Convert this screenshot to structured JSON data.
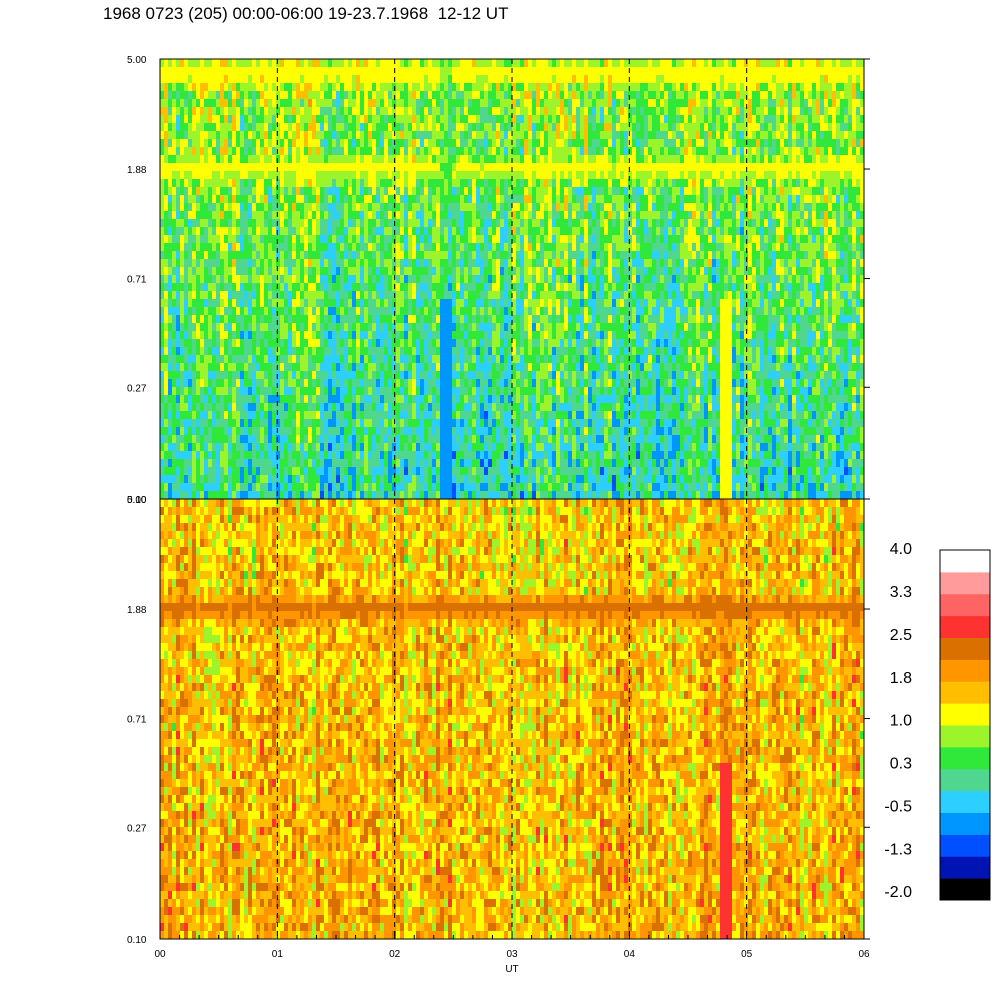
{
  "title": "1968 0723 (205) 00:00-06:00 19-23.7.1968  12-12 UT",
  "chart_data": {
    "type": "heatmap",
    "panels": [
      {
        "name": "",
        "y_scale": "log",
        "y_ticks": [
          "5.00",
          "1.88",
          "0.71",
          "0.27",
          "0.10"
        ],
        "y_tick_values": [
          5.0,
          1.88,
          0.71,
          0.27,
          0.1
        ],
        "base_level": 0.4,
        "band_levels": [
          {
            "y": 4.4,
            "level": 1.3
          },
          {
            "y": 1.88,
            "level": 1.15
          }
        ],
        "features": [
          {
            "x_hours": 4.82,
            "level": 1.3,
            "label": ""
          },
          {
            "x_hours": 2.45,
            "level": -0.6,
            "label": ""
          }
        ]
      },
      {
        "name": "",
        "y_scale": "log",
        "y_ticks": [
          "5.00",
          "1.88",
          "0.71",
          "0.27",
          "0.10"
        ],
        "y_tick_values": [
          5.0,
          1.88,
          0.71,
          0.27,
          0.1
        ],
        "base_level": 1.6,
        "band_levels": [
          {
            "y": 1.88,
            "level": 2.3
          }
        ],
        "features": [
          {
            "x_hours": 4.82,
            "level": 2.8,
            "label": ""
          }
        ]
      }
    ],
    "x_ticks": [
      "00",
      "01",
      "02",
      "03",
      "04",
      "05",
      "06"
    ],
    "x_tick_values": [
      0,
      1,
      2,
      3,
      4,
      5,
      6
    ],
    "x_label": "UT",
    "x_range": [
      0,
      6
    ],
    "dashed_hour_lines": [
      1,
      2,
      3,
      4,
      5
    ],
    "colorbar": {
      "labels": [
        "4.0",
        "3.3",
        "2.5",
        "1.8",
        "1.0",
        "0.3",
        "-0.5",
        "-1.3",
        "-2.0"
      ],
      "range": [
        -2.0,
        4.0
      ],
      "colors": [
        "#000000",
        "#0014b4",
        "#0050ff",
        "#0096ff",
        "#2ccfff",
        "#4fd68f",
        "#2fe83a",
        "#9cf52a",
        "#ffff00",
        "#ffbe00",
        "#ff9600",
        "#d97000",
        "#ff3232",
        "#ff6464",
        "#ff9b9b",
        "#ffffff"
      ]
    }
  }
}
